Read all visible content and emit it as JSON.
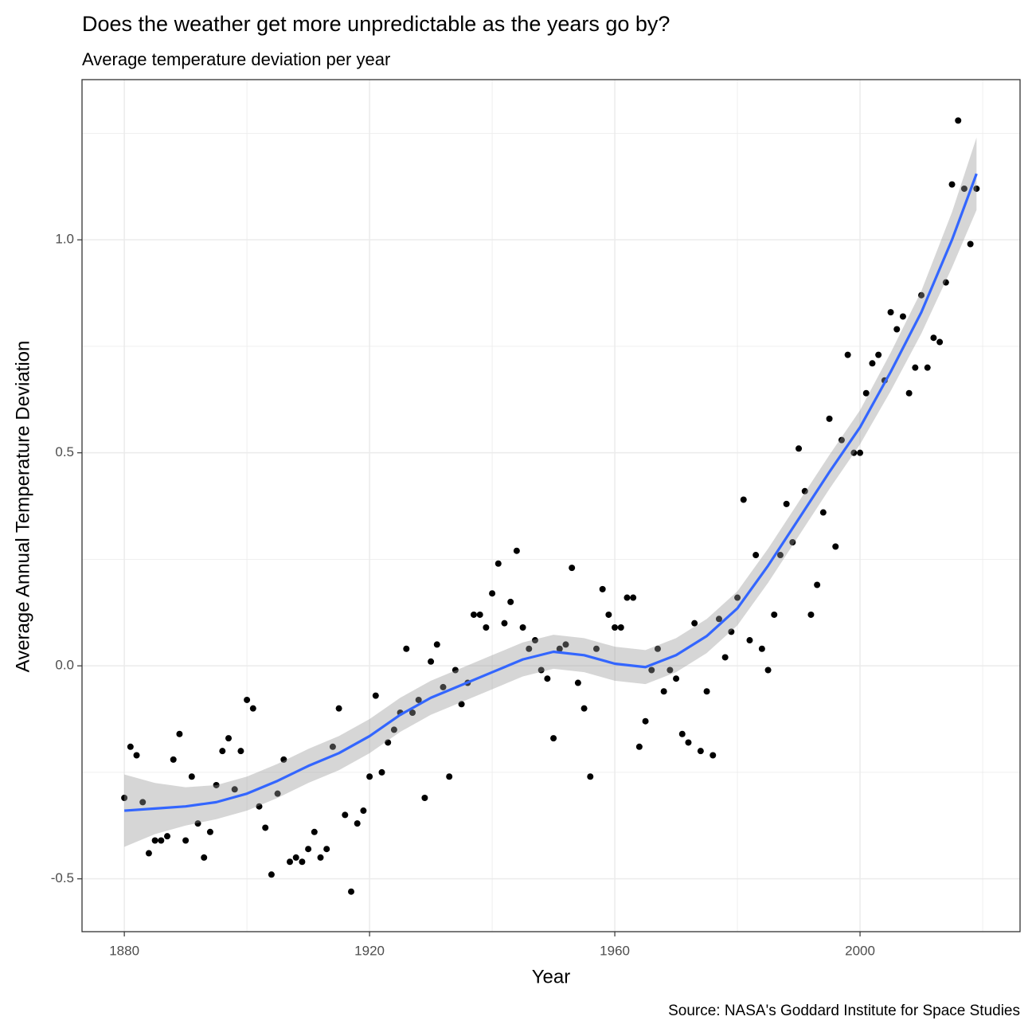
{
  "chart_data": {
    "type": "scatter",
    "title": "Does the weather get more unpredictable as the years go by?",
    "subtitle": "Average temperature deviation per year",
    "x_label": "Year",
    "y_label": "Average Annual Temperature Deviation",
    "caption": "Source: NASA's Goddard Institute for Space Studies",
    "x": [
      1880,
      1881,
      1882,
      1883,
      1884,
      1885,
      1886,
      1887,
      1888,
      1889,
      1890,
      1891,
      1892,
      1893,
      1894,
      1895,
      1896,
      1897,
      1898,
      1899,
      1900,
      1901,
      1902,
      1903,
      1904,
      1905,
      1906,
      1907,
      1908,
      1909,
      1910,
      1911,
      1912,
      1913,
      1914,
      1915,
      1916,
      1917,
      1918,
      1919,
      1920,
      1921,
      1922,
      1923,
      1924,
      1925,
      1926,
      1927,
      1928,
      1929,
      1930,
      1931,
      1932,
      1933,
      1934,
      1935,
      1936,
      1937,
      1938,
      1939,
      1940,
      1941,
      1942,
      1943,
      1944,
      1945,
      1946,
      1947,
      1948,
      1949,
      1950,
      1951,
      1952,
      1953,
      1954,
      1955,
      1956,
      1957,
      1958,
      1959,
      1960,
      1961,
      1962,
      1963,
      1964,
      1965,
      1966,
      1967,
      1968,
      1969,
      1970,
      1971,
      1972,
      1973,
      1974,
      1975,
      1976,
      1977,
      1978,
      1979,
      1980,
      1981,
      1982,
      1983,
      1984,
      1985,
      1986,
      1987,
      1988,
      1989,
      1990,
      1991,
      1992,
      1993,
      1994,
      1995,
      1996,
      1997,
      1998,
      1999,
      2000,
      2001,
      2002,
      2003,
      2004,
      2005,
      2006,
      2007,
      2008,
      2009,
      2010,
      2011,
      2012,
      2013,
      2014,
      2015,
      2016,
      2017,
      2018,
      2019
    ],
    "values": [
      -0.31,
      -0.19,
      -0.21,
      -0.32,
      -0.44,
      -0.41,
      -0.41,
      -0.4,
      -0.22,
      -0.16,
      -0.41,
      -0.26,
      -0.37,
      -0.45,
      -0.39,
      -0.28,
      -0.2,
      -0.17,
      -0.29,
      -0.2,
      -0.08,
      -0.1,
      -0.33,
      -0.38,
      -0.49,
      -0.3,
      -0.22,
      -0.46,
      -0.45,
      -0.46,
      -0.43,
      -0.39,
      -0.45,
      -0.43,
      -0.19,
      -0.1,
      -0.35,
      -0.53,
      -0.37,
      -0.34,
      -0.26,
      -0.07,
      -0.25,
      -0.18,
      -0.15,
      -0.11,
      0.04,
      -0.11,
      -0.08,
      -0.31,
      0.01,
      0.05,
      -0.05,
      -0.26,
      -0.01,
      -0.09,
      -0.04,
      0.12,
      0.12,
      0.09,
      0.17,
      0.24,
      0.1,
      0.15,
      0.27,
      0.09,
      0.04,
      0.06,
      -0.01,
      -0.03,
      -0.17,
      0.04,
      0.05,
      0.23,
      -0.04,
      -0.1,
      -0.26,
      0.04,
      0.18,
      0.12,
      0.09,
      0.09,
      0.16,
      0.16,
      -0.19,
      -0.13,
      -0.01,
      0.04,
      -0.06,
      -0.01,
      -0.03,
      -0.16,
      -0.18,
      0.1,
      -0.2,
      -0.06,
      -0.21,
      0.11,
      0.02,
      0.08,
      0.16,
      0.39,
      0.06,
      0.26,
      0.04,
      -0.01,
      0.12,
      0.26,
      0.38,
      0.29,
      0.51,
      0.41,
      0.12,
      0.19,
      0.36,
      0.58,
      0.28,
      0.53,
      0.73,
      0.5,
      0.5,
      0.64,
      0.71,
      0.73,
      0.67,
      0.83,
      0.79,
      0.82,
      0.64,
      0.7,
      0.87,
      0.7,
      0.77,
      0.76,
      0.9,
      1.13,
      1.28,
      1.12,
      0.99,
      1.12
    ],
    "color": "#000000",
    "smooth": {
      "color": "#3366FF",
      "band_color": "#999999",
      "x": [
        1880,
        1885,
        1890,
        1895,
        1900,
        1905,
        1910,
        1915,
        1920,
        1925,
        1930,
        1935,
        1940,
        1945,
        1950,
        1955,
        1960,
        1965,
        1970,
        1975,
        1980,
        1985,
        1990,
        1995,
        2000,
        2005,
        2010,
        2015,
        2019
      ],
      "values": [
        -0.34,
        -0.335,
        -0.33,
        -0.32,
        -0.3,
        -0.27,
        -0.235,
        -0.205,
        -0.165,
        -0.115,
        -0.075,
        -0.045,
        -0.015,
        0.015,
        0.033,
        0.025,
        0.005,
        -0.003,
        0.025,
        0.07,
        0.135,
        0.235,
        0.345,
        0.455,
        0.56,
        0.69,
        0.83,
        1.0,
        1.155
      ],
      "lower": [
        -0.425,
        -0.395,
        -0.375,
        -0.36,
        -0.34,
        -0.31,
        -0.275,
        -0.245,
        -0.205,
        -0.155,
        -0.115,
        -0.085,
        -0.055,
        -0.025,
        -0.007,
        -0.015,
        -0.035,
        -0.043,
        -0.015,
        0.03,
        0.095,
        0.195,
        0.305,
        0.415,
        0.52,
        0.645,
        0.78,
        0.935,
        1.07
      ],
      "upper": [
        -0.255,
        -0.275,
        -0.285,
        -0.28,
        -0.26,
        -0.23,
        -0.195,
        -0.165,
        -0.125,
        -0.075,
        -0.035,
        -0.005,
        0.025,
        0.055,
        0.073,
        0.065,
        0.045,
        0.037,
        0.065,
        0.11,
        0.175,
        0.275,
        0.385,
        0.495,
        0.6,
        0.735,
        0.88,
        1.065,
        1.24
      ]
    },
    "xlim": [
      1873.1,
      2026.1
    ],
    "ylim": [
      -0.624,
      1.376
    ],
    "xticks": [
      1880,
      1920,
      1960,
      2000
    ],
    "yticks": [
      -0.5,
      {
        "value": 0,
        "label": "0.0"
      },
      0.5,
      {
        "value": 1,
        "label": "1.0"
      }
    ],
    "x_minor_ticks": [
      1900,
      1940,
      1980,
      2020
    ],
    "y_minor_ticks": [
      -0.25,
      0.25,
      0.75,
      1.25
    ],
    "grid": true
  }
}
